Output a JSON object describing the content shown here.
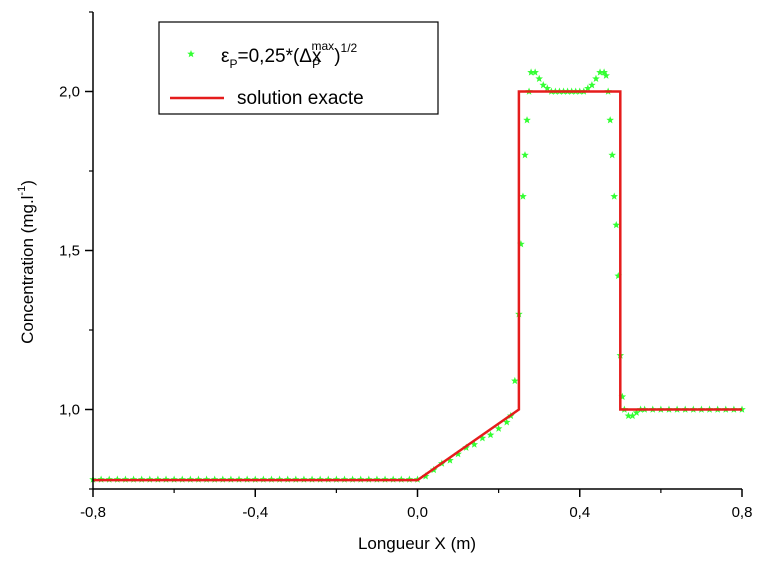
{
  "chart_data": {
    "type": "line",
    "title": "",
    "xlabel": "Longueur X (m)",
    "ylabel_main": "Concentration (mg.l",
    "ylabel_sup": "-1",
    "ylabel_end": ")",
    "xlim": [
      -0.8,
      0.8
    ],
    "ylim": [
      0.75,
      2.25
    ],
    "x_ticks": [
      -0.8,
      -0.4,
      0.0,
      0.4,
      0.8
    ],
    "x_tick_labels": [
      "-0,8",
      "-0,4",
      "0,0",
      "0,4",
      "0,8"
    ],
    "y_ticks": [
      1.0,
      1.5,
      2.0
    ],
    "y_tick_labels": [
      "1,0",
      "1,5",
      "2,0"
    ],
    "grid": false,
    "legend_position": "top-left",
    "legend": {
      "numeric_main": "ε",
      "numeric_sub": "P",
      "numeric_mid": "=0,25*(Δx",
      "numeric_sup": "max",
      "numeric_sub2": "P",
      "numeric_end": ")",
      "numeric_sup2": "1/2",
      "exact": "solution exacte"
    },
    "series": [
      {
        "name": "solution exacte",
        "color": "#e51c1c",
        "style": "line",
        "x": [
          -0.8,
          0.0,
          0.25,
          0.25,
          0.5,
          0.5,
          0.8
        ],
        "y": [
          0.778,
          0.778,
          1.0,
          2.0,
          2.0,
          1.0,
          1.0
        ]
      },
      {
        "name": "numeric",
        "color": "#33ff33",
        "style": "star-markers",
        "x": [
          -0.8,
          -0.78,
          -0.76,
          -0.74,
          -0.72,
          -0.7,
          -0.68,
          -0.66,
          -0.64,
          -0.62,
          -0.6,
          -0.58,
          -0.56,
          -0.54,
          -0.52,
          -0.5,
          -0.48,
          -0.46,
          -0.44,
          -0.42,
          -0.4,
          -0.38,
          -0.36,
          -0.34,
          -0.32,
          -0.3,
          -0.28,
          -0.26,
          -0.24,
          -0.22,
          -0.2,
          -0.18,
          -0.16,
          -0.14,
          -0.12,
          -0.1,
          -0.08,
          -0.06,
          -0.04,
          -0.02,
          0.0,
          0.02,
          0.04,
          0.06,
          0.08,
          0.1,
          0.12,
          0.14,
          0.16,
          0.18,
          0.2,
          0.22,
          0.23,
          0.24,
          0.25,
          0.255,
          0.26,
          0.265,
          0.27,
          0.275,
          0.28,
          0.29,
          0.3,
          0.31,
          0.32,
          0.33,
          0.34,
          0.35,
          0.36,
          0.37,
          0.38,
          0.39,
          0.4,
          0.41,
          0.42,
          0.43,
          0.44,
          0.45,
          0.46,
          0.465,
          0.47,
          0.475,
          0.48,
          0.485,
          0.49,
          0.495,
          0.5,
          0.505,
          0.51,
          0.52,
          0.53,
          0.54,
          0.55,
          0.56,
          0.58,
          0.6,
          0.62,
          0.64,
          0.66,
          0.68,
          0.7,
          0.72,
          0.74,
          0.76,
          0.78,
          0.8
        ],
        "y": [
          0.78,
          0.78,
          0.78,
          0.78,
          0.78,
          0.78,
          0.78,
          0.78,
          0.78,
          0.78,
          0.78,
          0.78,
          0.78,
          0.78,
          0.78,
          0.78,
          0.78,
          0.78,
          0.78,
          0.78,
          0.78,
          0.78,
          0.78,
          0.78,
          0.78,
          0.78,
          0.78,
          0.78,
          0.78,
          0.78,
          0.78,
          0.78,
          0.78,
          0.78,
          0.78,
          0.78,
          0.78,
          0.78,
          0.78,
          0.78,
          0.78,
          0.79,
          0.81,
          0.83,
          0.84,
          0.86,
          0.88,
          0.89,
          0.91,
          0.92,
          0.94,
          0.96,
          0.98,
          1.09,
          1.3,
          1.52,
          1.67,
          1.8,
          1.91,
          2.0,
          2.06,
          2.06,
          2.04,
          2.02,
          2.01,
          2.0,
          2.0,
          2.0,
          2.0,
          2.0,
          2.0,
          2.0,
          2.0,
          2.0,
          2.01,
          2.02,
          2.04,
          2.06,
          2.06,
          2.05,
          2.0,
          1.91,
          1.8,
          1.67,
          1.58,
          1.42,
          1.17,
          1.04,
          1.0,
          0.98,
          0.98,
          0.99,
          1.0,
          1.0,
          1.0,
          1.0,
          1.0,
          1.0,
          1.0,
          1.0,
          1.0,
          1.0,
          1.0,
          1.0,
          1.0,
          1.0
        ]
      }
    ]
  }
}
